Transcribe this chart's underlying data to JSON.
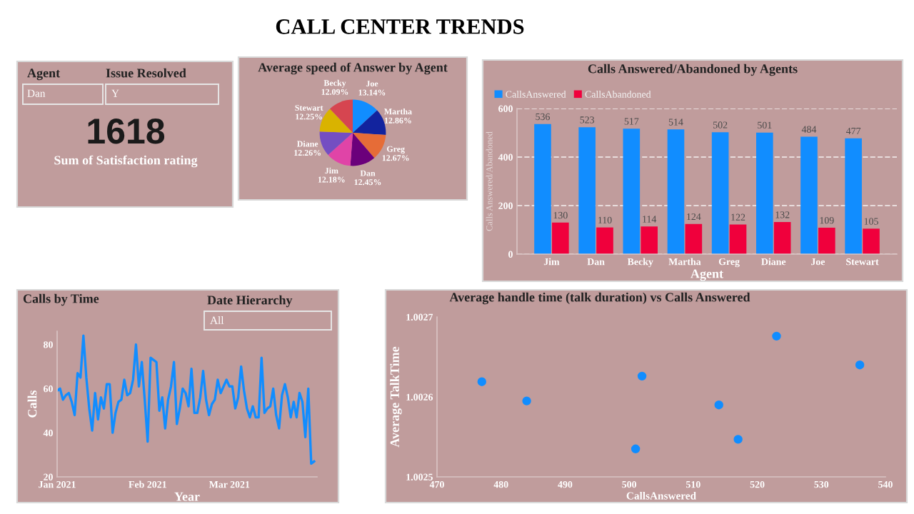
{
  "chart_data": [
    {
      "type": "other",
      "title": "CALL CENTER TRENDS"
    },
    {
      "type": "other",
      "annotations": [
        "Agent",
        "Dan",
        "Issue Resolved",
        "Y",
        "1618",
        "Sum of Satisfaction rating"
      ]
    },
    {
      "type": "pie",
      "title": "Average speed of Answer by Agent",
      "categories": [
        "Joe",
        "Martha",
        "Greg",
        "Dan",
        "Jim",
        "Diane",
        "Stewart",
        "Becky"
      ],
      "values": [
        13.14,
        12.86,
        12.67,
        12.45,
        12.18,
        12.26,
        12.25,
        12.09
      ],
      "value_labels": [
        "13.14%",
        "12.86%",
        "12.67%",
        "12.45%",
        "12.18%",
        "12.26%",
        "12.25%",
        "12.09%"
      ],
      "colors": [
        "#118dff",
        "#12239e",
        "#e66c37",
        "#6b007b",
        "#e044a7",
        "#744ec2",
        "#d9b300",
        "#d64550"
      ]
    },
    {
      "type": "bar",
      "title": "Calls Answered/Abandoned by Agents",
      "xlabel": "Agent",
      "ylabel": "Calls Answered/Abandoned",
      "categories": [
        "Jim",
        "Dan",
        "Becky",
        "Martha",
        "Greg",
        "Diane",
        "Joe",
        "Stewart"
      ],
      "series": [
        {
          "name": "CallsAnswered",
          "color": "#118dff",
          "values": [
            536,
            523,
            517,
            514,
            502,
            501,
            484,
            477
          ]
        },
        {
          "name": "CallsAbandoned",
          "color": "#f0003c",
          "values": [
            130,
            110,
            114,
            124,
            122,
            132,
            109,
            105
          ]
        }
      ],
      "ylim": [
        0,
        600
      ],
      "yticks": [
        0,
        200,
        400,
        600
      ],
      "grid": "y",
      "legend": "top left",
      "data_labels": true
    },
    {
      "type": "line",
      "title": "Calls by Time",
      "xlabel": "Year",
      "ylabel": "Calls",
      "annotations": [
        "Date Hierarchy",
        "All"
      ],
      "x": [
        "2021-01-01",
        "2021-01-02",
        "2021-01-03",
        "2021-01-04",
        "2021-01-05",
        "2021-01-06",
        "2021-01-07",
        "2021-01-08",
        "2021-01-09",
        "2021-01-10",
        "2021-01-11",
        "2021-01-12",
        "2021-01-13",
        "2021-01-14",
        "2021-01-15",
        "2021-01-16",
        "2021-01-17",
        "2021-01-18",
        "2021-01-19",
        "2021-01-20",
        "2021-01-21",
        "2021-01-22",
        "2021-01-23",
        "2021-01-24",
        "2021-01-25",
        "2021-01-26",
        "2021-01-27",
        "2021-01-28",
        "2021-01-29",
        "2021-01-30",
        "2021-01-31",
        "2021-02-01",
        "2021-02-02",
        "2021-02-03",
        "2021-02-04",
        "2021-02-05",
        "2021-02-06",
        "2021-02-07",
        "2021-02-08",
        "2021-02-09",
        "2021-02-10",
        "2021-02-11",
        "2021-02-12",
        "2021-02-13",
        "2021-02-14",
        "2021-02-15",
        "2021-02-16",
        "2021-02-17",
        "2021-02-18",
        "2021-02-19",
        "2021-02-20",
        "2021-02-21",
        "2021-02-22",
        "2021-02-23",
        "2021-02-24",
        "2021-02-25",
        "2021-02-26",
        "2021-02-27",
        "2021-02-28",
        "2021-03-01",
        "2021-03-02",
        "2021-03-03",
        "2021-03-04",
        "2021-03-05",
        "2021-03-06",
        "2021-03-07",
        "2021-03-08",
        "2021-03-09",
        "2021-03-10",
        "2021-03-11",
        "2021-03-12",
        "2021-03-13",
        "2021-03-14",
        "2021-03-15",
        "2021-03-16",
        "2021-03-17",
        "2021-03-18",
        "2021-03-19",
        "2021-03-20",
        "2021-03-21",
        "2021-03-22",
        "2021-03-23",
        "2021-03-24",
        "2021-03-25",
        "2021-03-26",
        "2021-03-27",
        "2021-03-28",
        "2021-03-29",
        "2021-03-30"
      ],
      "series": [
        {
          "color": "#118dff",
          "values": [
            59,
            60,
            55,
            57,
            58,
            54,
            48,
            67,
            65,
            84,
            65,
            51,
            41,
            58,
            46,
            56,
            51,
            62,
            62,
            40,
            49,
            54,
            55,
            64,
            57,
            58,
            64,
            80,
            61,
            72,
            55,
            36,
            74,
            73,
            72,
            50,
            56,
            42,
            55,
            61,
            72,
            44,
            51,
            60,
            58,
            52,
            69,
            49,
            49,
            56,
            68,
            55,
            48,
            53,
            55,
            64,
            58,
            61,
            64,
            61,
            61,
            51,
            56,
            70,
            59,
            51,
            47,
            52,
            47,
            47,
            74,
            49,
            51,
            52,
            60,
            48,
            42,
            57,
            62,
            56,
            47,
            54,
            47,
            58,
            54,
            38,
            60,
            26,
            27
          ]
        }
      ],
      "xlim": [
        "2021-01-01",
        "2021-03-31"
      ],
      "xticks": [
        {
          "value": "2021-01-01",
          "label": "Jan 2021"
        },
        {
          "value": "2021-02-01",
          "label": "Feb 2021"
        },
        {
          "value": "2021-03-01",
          "label": "Mar 2021"
        }
      ],
      "ylim": [
        20,
        86
      ],
      "yticks": [
        20,
        40,
        60,
        80
      ],
      "marker": "none",
      "line_style": "solid"
    },
    {
      "type": "scatter",
      "title": "Average handle time (talk duration) vs Calls Answered",
      "xlabel": "CallsAnswered",
      "ylabel": "Average TalkTime",
      "x": [
        477,
        484,
        502,
        501,
        514,
        517,
        523,
        536
      ],
      "series": [
        {
          "color": "#118dff",
          "values": [
            1.002619,
            1.002595,
            1.002626,
            1.002535,
            1.00259,
            1.002547,
            1.002676,
            1.00264
          ]
        }
      ],
      "xlim": [
        470,
        540
      ],
      "xticks": [
        470,
        480,
        490,
        500,
        510,
        520,
        530,
        540
      ],
      "ylim": [
        1.0025,
        1.0027
      ],
      "yticks": [
        1.0025,
        1.0026,
        1.0027
      ],
      "marker": "circle"
    }
  ]
}
